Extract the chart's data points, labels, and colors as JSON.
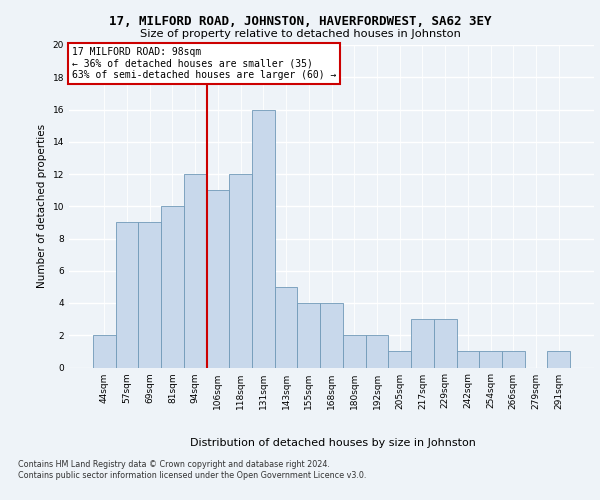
{
  "title1": "17, MILFORD ROAD, JOHNSTON, HAVERFORDWEST, SA62 3EY",
  "title2": "Size of property relative to detached houses in Johnston",
  "xlabel": "Distribution of detached houses by size in Johnston",
  "ylabel": "Number of detached properties",
  "categories": [
    "44sqm",
    "57sqm",
    "69sqm",
    "81sqm",
    "94sqm",
    "106sqm",
    "118sqm",
    "131sqm",
    "143sqm",
    "155sqm",
    "168sqm",
    "180sqm",
    "192sqm",
    "205sqm",
    "217sqm",
    "229sqm",
    "242sqm",
    "254sqm",
    "266sqm",
    "279sqm",
    "291sqm"
  ],
  "values": [
    2,
    9,
    9,
    10,
    12,
    11,
    12,
    16,
    5,
    4,
    4,
    2,
    2,
    1,
    3,
    3,
    1,
    1,
    1,
    0,
    1
  ],
  "bar_color": "#c8d8eb",
  "bar_edge_color": "#7099b8",
  "vline_x": 4.5,
  "vline_color": "#cc0000",
  "annotation_line0": "17 MILFORD ROAD: 98sqm",
  "annotation_line1": "← 36% of detached houses are smaller (35)",
  "annotation_line2": "63% of semi-detached houses are larger (60) →",
  "annotation_box_color": "#ffffff",
  "annotation_box_edge_color": "#cc0000",
  "ylim": [
    0,
    20
  ],
  "yticks": [
    0,
    2,
    4,
    6,
    8,
    10,
    12,
    14,
    16,
    18,
    20
  ],
  "footer1": "Contains HM Land Registry data © Crown copyright and database right 2024.",
  "footer2": "Contains public sector information licensed under the Open Government Licence v3.0.",
  "bg_color": "#eef3f8"
}
